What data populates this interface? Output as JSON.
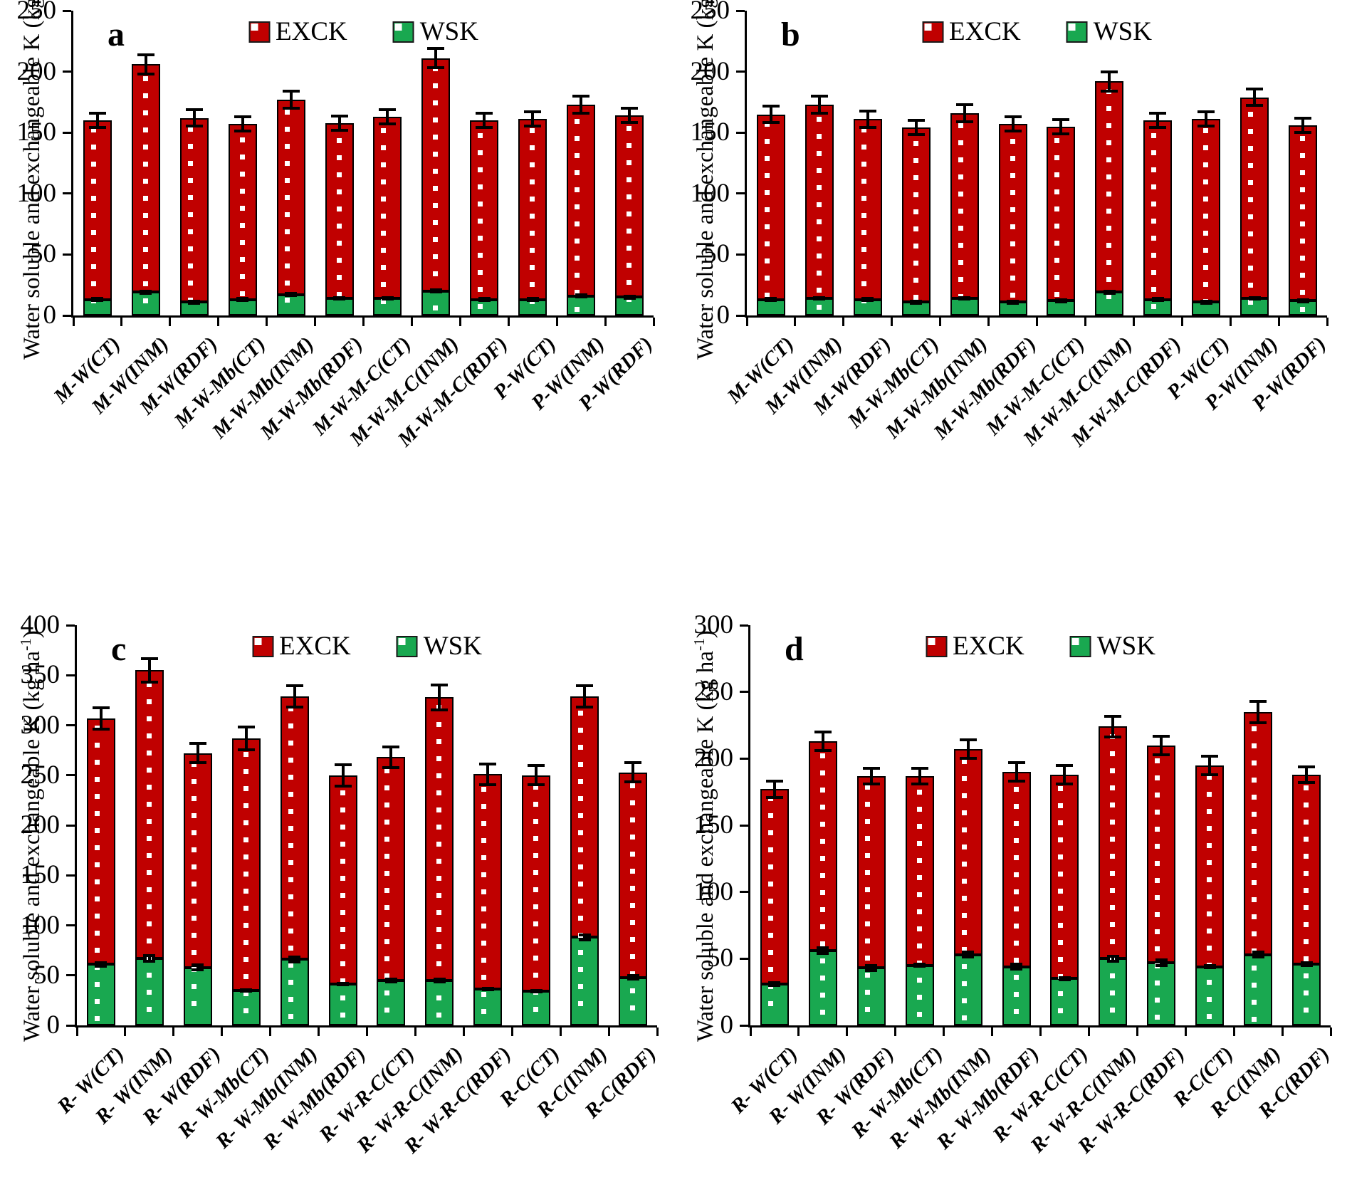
{
  "legend": {
    "exck_label": "EXCK",
    "wsk_label": "WSK"
  },
  "axis": {
    "ylabel_prefix": "Water soluble and exchangeable K (kg ha",
    "ylabel_sup": "-1",
    "ylabel_suffix": ")"
  },
  "colors": {
    "exck": "#C00000",
    "wsk": "#19A850",
    "axis": "#000000",
    "pattern_dot": "#FFFFFF"
  },
  "chart_data": [
    {
      "type": "bar",
      "panel_label": "a",
      "stacked": true,
      "title": "",
      "xlabel": "",
      "ylabel": "Water soluble and exchangeable K (kg ha-1)",
      "ylim": [
        0,
        250
      ],
      "ystep": 50,
      "grid": false,
      "legend_position": "top-center",
      "categories": [
        "M-W(CT)",
        "M-W(INM)",
        "M-W(RDF)",
        "M-W-Mb(CT)",
        "M-W-Mb(INM)",
        "M-W-Mb(RDF)",
        "M-W-M-C(CT)",
        "M-W-M-C(INM)",
        "M-W-M-C(RDF)",
        "P-W(CT)",
        "P-W(INM)",
        "P-W(RDF)"
      ],
      "series": [
        {
          "name": "EXCK",
          "values": [
            147,
            187,
            151,
            144,
            160,
            144,
            149,
            191,
            147,
            148,
            157,
            149
          ]
        },
        {
          "name": "WSK",
          "values": [
            13,
            19,
            11,
            13,
            17,
            14,
            14,
            20,
            13,
            13,
            16,
            15
          ]
        }
      ],
      "totals": [
        160,
        206,
        162,
        157,
        177,
        158,
        163,
        211,
        160,
        161,
        173,
        164
      ],
      "error_total": [
        7,
        9,
        8,
        7,
        8,
        7,
        7,
        9,
        7,
        7,
        8,
        7
      ],
      "error_wsk": [
        2,
        2,
        2,
        2,
        2,
        2,
        2,
        2,
        2,
        2,
        2,
        2
      ]
    },
    {
      "type": "bar",
      "panel_label": "b",
      "stacked": true,
      "title": "",
      "xlabel": "",
      "ylabel": "Water soluble and exchangeable K (kg ha-1)",
      "ylim": [
        0,
        250
      ],
      "ystep": 50,
      "grid": false,
      "legend_position": "top-center",
      "categories": [
        "M-W(CT)",
        "M-W(INM)",
        "M-W(RDF)",
        "M-W-Mb(CT)",
        "M-W-Mb(INM)",
        "M-W-Mb(RDF)",
        "M-W-M-C(CT)",
        "M-W-M-C(INM)",
        "M-W-M-C(RDF)",
        "P-W(CT)",
        "P-W(INM)",
        "P-W(RDF)"
      ],
      "series": [
        {
          "name": "EXCK",
          "values": [
            152,
            159,
            148,
            143,
            152,
            146,
            143,
            173,
            147,
            150,
            165,
            144
          ]
        },
        {
          "name": "WSK",
          "values": [
            13,
            14,
            13,
            11,
            14,
            11,
            12,
            19,
            13,
            11,
            14,
            12
          ]
        }
      ],
      "totals": [
        165,
        173,
        161,
        154,
        166,
        157,
        155,
        192,
        160,
        161,
        179,
        156
      ],
      "error_total": [
        8,
        8,
        8,
        7,
        8,
        7,
        7,
        9,
        7,
        7,
        8,
        7
      ],
      "error_wsk": [
        2,
        2,
        2,
        2,
        2,
        2,
        2,
        2,
        2,
        2,
        2,
        2
      ]
    },
    {
      "type": "bar",
      "panel_label": "c",
      "stacked": true,
      "title": "",
      "xlabel": "",
      "ylabel": "Water soluble and exchangeable K (kg ha-1)",
      "ylim": [
        0,
        400
      ],
      "ystep": 50,
      "grid": false,
      "legend_position": "top-center",
      "categories": [
        "R- W(CT)",
        "R- W(INM)",
        "R- W(RDF)",
        "R- W-Mb(CT)",
        "R- W-Mb(INM)",
        "R- W-Mb(RDF)",
        "R- W-R-C(CT)",
        "R- W-R-C(INM)",
        "R- W-R-C(RDF)",
        "R-C(CT)",
        "R-C(INM)",
        "R-C(RDF)"
      ],
      "series": [
        {
          "name": "EXCK",
          "values": [
            246,
            288,
            214,
            252,
            263,
            209,
            223,
            283,
            215,
            216,
            241,
            205
          ]
        },
        {
          "name": "WSK",
          "values": [
            61,
            67,
            58,
            35,
            66,
            41,
            45,
            45,
            36,
            34,
            88,
            48
          ]
        }
      ],
      "totals": [
        307,
        355,
        272,
        287,
        329,
        250,
        268,
        328,
        251,
        250,
        329,
        253
      ],
      "error_total": [
        12,
        13,
        11,
        13,
        12,
        12,
        12,
        14,
        12,
        11,
        12,
        11
      ],
      "error_wsk": [
        3,
        4,
        4,
        2,
        4,
        2,
        3,
        3,
        2,
        2,
        4,
        3
      ]
    },
    {
      "type": "bar",
      "panel_label": "d",
      "stacked": true,
      "title": "",
      "xlabel": "",
      "ylabel": "Water soluble and exchangeable K (kg ha-1)",
      "ylim": [
        0,
        300
      ],
      "ystep": 50,
      "grid": false,
      "legend_position": "top-center",
      "categories": [
        "R- W(CT)",
        "R- W(INM)",
        "R- W(RDF)",
        "R- W-Mb(CT)",
        "R- W-Mb(INM)",
        "R- W-Mb(RDF)",
        "R- W-R-C(CT)",
        "R- W-R-C(INM)",
        "R- W-R-C(RDF)",
        "R-C(CT)",
        "R-C(INM)",
        "R-C(RDF)"
      ],
      "series": [
        {
          "name": "EXCK",
          "values": [
            146,
            157,
            144,
            142,
            154,
            146,
            153,
            174,
            163,
            151,
            182,
            142
          ]
        },
        {
          "name": "WSK",
          "values": [
            31,
            56,
            43,
            45,
            53,
            44,
            35,
            50,
            47,
            44,
            53,
            46
          ]
        }
      ],
      "totals": [
        177,
        213,
        187,
        187,
        207,
        190,
        188,
        224,
        210,
        195,
        235,
        188
      ],
      "error_total": [
        7,
        8,
        7,
        7,
        8,
        8,
        8,
        9,
        8,
        8,
        9,
        7
      ],
      "error_wsk": [
        2,
        3,
        3,
        2,
        3,
        3,
        2,
        3,
        3,
        2,
        3,
        2
      ]
    }
  ]
}
